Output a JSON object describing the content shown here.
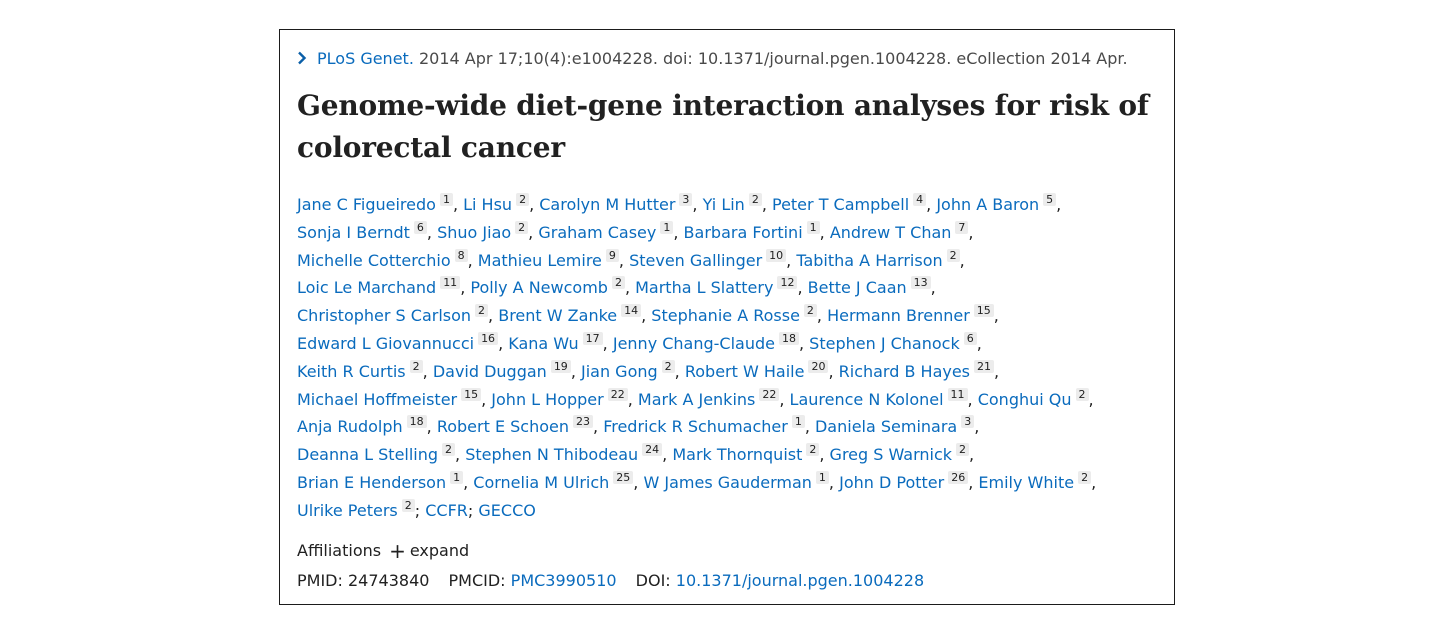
{
  "citation": {
    "journal": "PLoS Genet.",
    "details": " 2014 Apr 17;10(4):e1004228. doi: 10.1371/journal.pgen.1004228. eCollection 2014 Apr."
  },
  "title": "Genome-wide diet-gene interaction analyses for risk of colorectal cancer",
  "authors": [
    {
      "name": "Jane C Figueiredo",
      "aff": "1"
    },
    {
      "name": "Li Hsu",
      "aff": "2"
    },
    {
      "name": "Carolyn M Hutter",
      "aff": "3"
    },
    {
      "name": "Yi Lin",
      "aff": "2"
    },
    {
      "name": "Peter T Campbell",
      "aff": "4"
    },
    {
      "name": "John A Baron",
      "aff": "5"
    },
    {
      "name": "Sonja I Berndt",
      "aff": "6"
    },
    {
      "name": "Shuo Jiao",
      "aff": "2"
    },
    {
      "name": "Graham Casey",
      "aff": "1"
    },
    {
      "name": "Barbara Fortini",
      "aff": "1"
    },
    {
      "name": "Andrew T Chan",
      "aff": "7"
    },
    {
      "name": "Michelle Cotterchio",
      "aff": "8"
    },
    {
      "name": "Mathieu Lemire",
      "aff": "9"
    },
    {
      "name": "Steven Gallinger",
      "aff": "10"
    },
    {
      "name": "Tabitha A Harrison",
      "aff": "2"
    },
    {
      "name": "Loic Le Marchand",
      "aff": "11"
    },
    {
      "name": "Polly A Newcomb",
      "aff": "2"
    },
    {
      "name": "Martha L Slattery",
      "aff": "12"
    },
    {
      "name": "Bette J Caan",
      "aff": "13"
    },
    {
      "name": "Christopher S Carlson",
      "aff": "2"
    },
    {
      "name": "Brent W Zanke",
      "aff": "14"
    },
    {
      "name": "Stephanie A Rosse",
      "aff": "2"
    },
    {
      "name": "Hermann Brenner",
      "aff": "15"
    },
    {
      "name": "Edward L Giovannucci",
      "aff": "16"
    },
    {
      "name": "Kana Wu",
      "aff": "17"
    },
    {
      "name": "Jenny Chang-Claude",
      "aff": "18"
    },
    {
      "name": "Stephen J Chanock",
      "aff": "6"
    },
    {
      "name": "Keith R Curtis",
      "aff": "2"
    },
    {
      "name": "David Duggan",
      "aff": "19"
    },
    {
      "name": "Jian Gong",
      "aff": "2"
    },
    {
      "name": "Robert W Haile",
      "aff": "20"
    },
    {
      "name": "Richard B Hayes",
      "aff": "21"
    },
    {
      "name": "Michael Hoffmeister",
      "aff": "15"
    },
    {
      "name": "John L Hopper",
      "aff": "22"
    },
    {
      "name": "Mark A Jenkins",
      "aff": "22"
    },
    {
      "name": "Laurence N Kolonel",
      "aff": "11"
    },
    {
      "name": "Conghui Qu",
      "aff": "2"
    },
    {
      "name": "Anja Rudolph",
      "aff": "18"
    },
    {
      "name": "Robert E Schoen",
      "aff": "23"
    },
    {
      "name": "Fredrick R Schumacher",
      "aff": "1"
    },
    {
      "name": "Daniela Seminara",
      "aff": "3"
    },
    {
      "name": "Deanna L Stelling",
      "aff": "2"
    },
    {
      "name": "Stephen N Thibodeau",
      "aff": "24"
    },
    {
      "name": "Mark Thornquist",
      "aff": "2"
    },
    {
      "name": "Greg S Warnick",
      "aff": "2"
    },
    {
      "name": "Brian E Henderson",
      "aff": "1"
    },
    {
      "name": "Cornelia M Ulrich",
      "aff": "25"
    },
    {
      "name": "W James Gauderman",
      "aff": "1"
    },
    {
      "name": "John D Potter",
      "aff": "26"
    },
    {
      "name": "Emily White",
      "aff": "2"
    },
    {
      "name": "Ulrike Peters",
      "aff": "2"
    }
  ],
  "author_lines": [
    6,
    5,
    4,
    4,
    4,
    4,
    5,
    5,
    4,
    4,
    5,
    1
  ],
  "groups": [
    {
      "name": "CCFR"
    },
    {
      "name": "GECCO"
    }
  ],
  "affiliations": {
    "label": "Affiliations",
    "expand_label": "expand"
  },
  "ids": {
    "pmid_label": "PMID:",
    "pmid": "24743840",
    "pmcid_label": "PMCID:",
    "pmcid": "PMC3990510",
    "doi_label": "DOI:",
    "doi": "10.1371/journal.pgen.1004228"
  },
  "colors": {
    "link": "#0a6bbd",
    "text": "#212121",
    "badge_bg": "#ececec"
  }
}
